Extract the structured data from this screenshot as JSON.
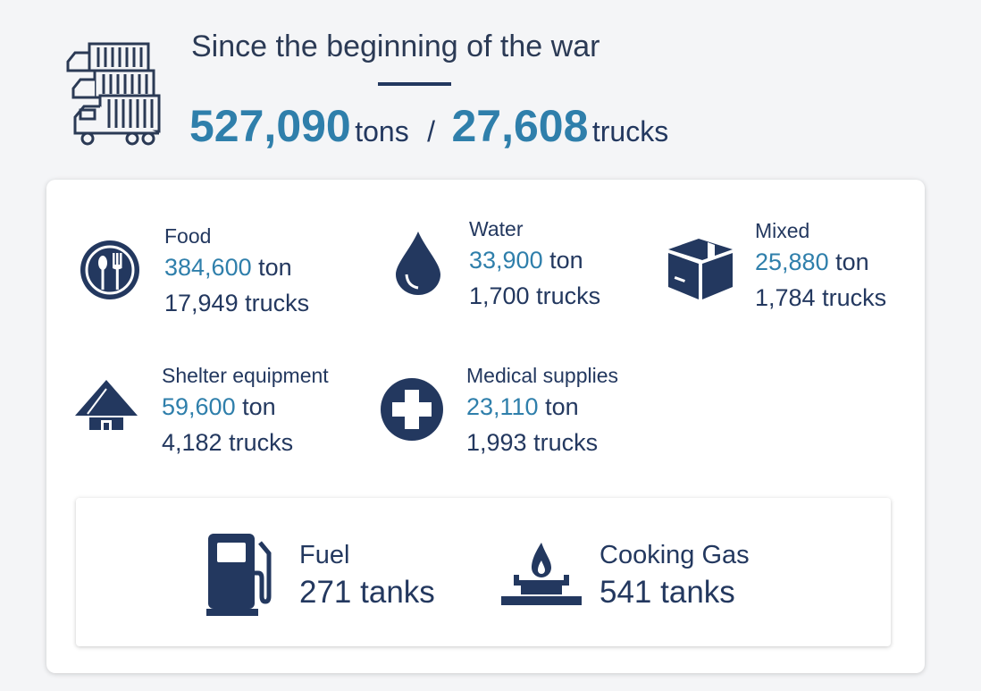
{
  "header": {
    "title": "Since the beginning of the war",
    "total_tons": "527,090",
    "tons_unit": "tons",
    "separator": "/",
    "total_trucks": "27,608",
    "trucks_unit": "trucks",
    "icon": "trucks-icon"
  },
  "categories": [
    {
      "label": "Food",
      "tons": "384,600",
      "ton_unit": "ton",
      "trucks": "17,949",
      "trucks_unit": "trucks",
      "icon": "food-plate-icon"
    },
    {
      "label": "Water",
      "tons": "33,900",
      "ton_unit": "ton",
      "trucks": "1,700",
      "trucks_unit": "trucks",
      "icon": "water-drop-icon"
    },
    {
      "label": "Mixed",
      "tons": "25,880",
      "ton_unit": "ton",
      "trucks": "1,784",
      "trucks_unit": "trucks",
      "icon": "box-icon"
    },
    {
      "label": "Shelter equipment",
      "tons": "59,600",
      "ton_unit": "ton",
      "trucks": "4,182",
      "trucks_unit": "trucks",
      "icon": "tent-icon"
    },
    {
      "label": "Medical supplies",
      "tons": "23,110",
      "ton_unit": "ton",
      "trucks": "1,993",
      "trucks_unit": "trucks",
      "icon": "medical-cross-icon"
    }
  ],
  "fuel": {
    "label": "Fuel",
    "count": "271",
    "unit": "tanks",
    "icon": "fuel-pump-icon"
  },
  "cooking_gas": {
    "label": "Cooking Gas",
    "count": "541",
    "unit": "tanks",
    "icon": "gas-burner-icon"
  },
  "colors": {
    "navy": "#23385f",
    "accent": "#2f7fab",
    "background": "#f4f5f7",
    "card": "#ffffff"
  }
}
